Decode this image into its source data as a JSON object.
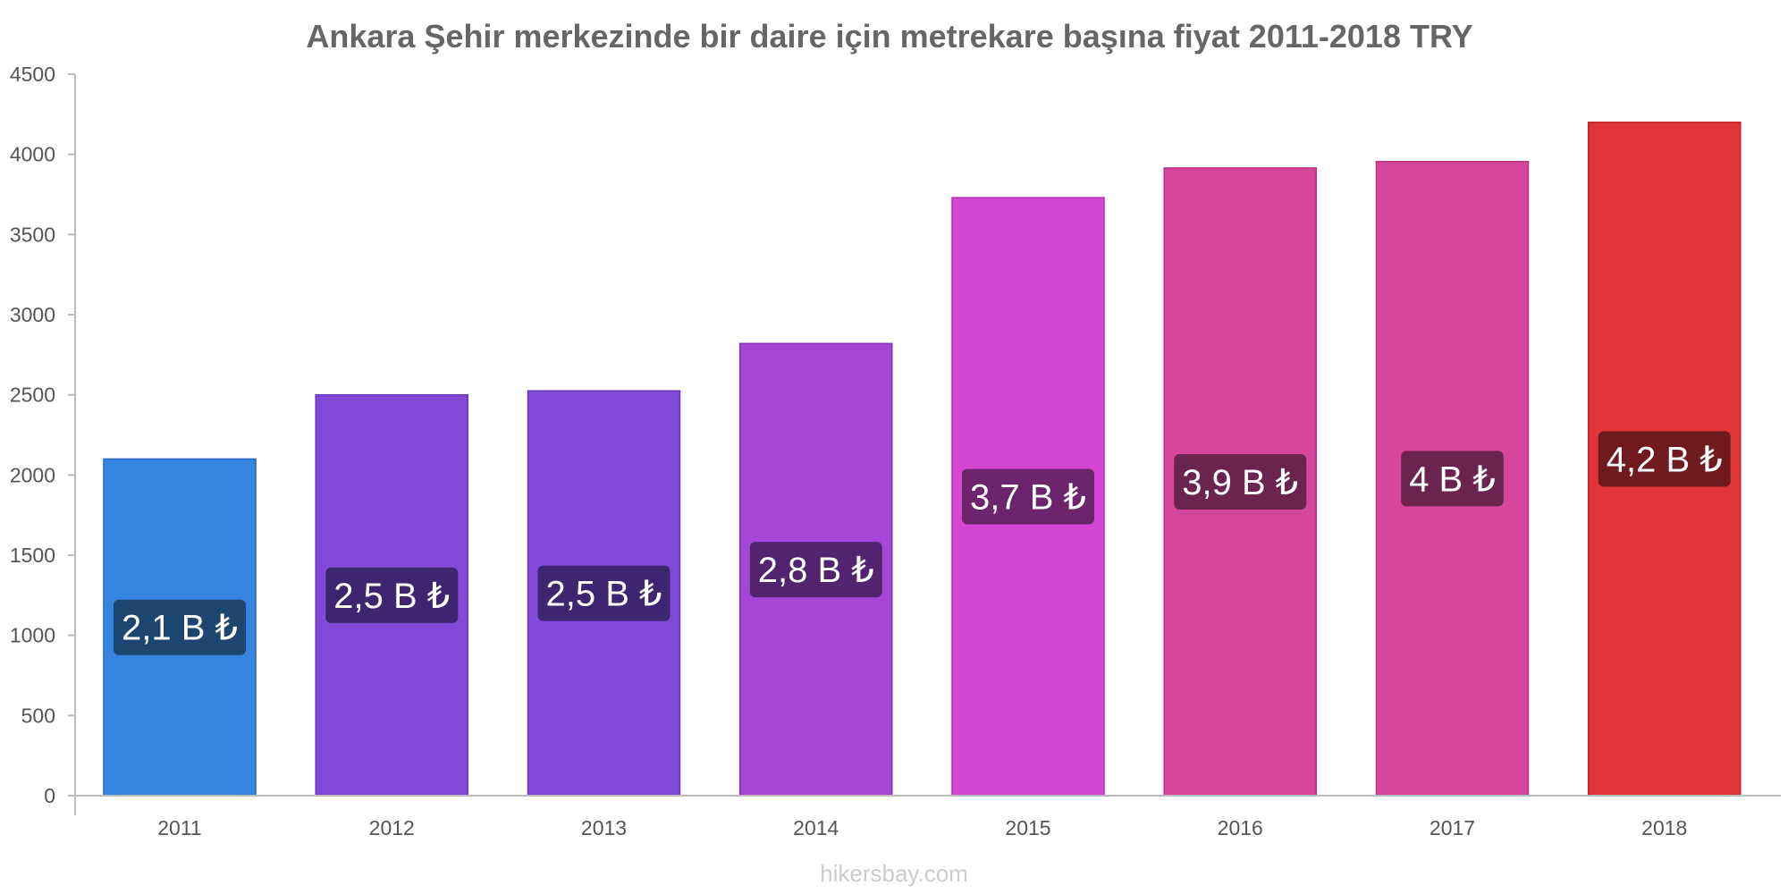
{
  "chart_data": {
    "type": "bar",
    "title": "Ankara Şehir merkezinde bir daire için metrekare başına fiyat 2011-2018 TRY",
    "xlabel": "",
    "ylabel": "",
    "categories": [
      "2011",
      "2012",
      "2013",
      "2014",
      "2015",
      "2016",
      "2017",
      "2018"
    ],
    "values": [
      2100,
      2500,
      2525,
      2820,
      3730,
      3915,
      3955,
      4200
    ],
    "data_labels": [
      "2,1 B ₺",
      "2,5 B ₺",
      "2,5 B ₺",
      "2,8 B ₺",
      "3,7 B ₺",
      "3,9 B ₺",
      "4 B ₺",
      "4,2 B ₺"
    ],
    "ylim": [
      0,
      4500
    ],
    "yticks": [
      "0",
      "500",
      "1000",
      "1500",
      "2000",
      "2500",
      "3000",
      "3500",
      "4000",
      "4500"
    ],
    "bar_colors": [
      "#3584e0",
      "#8249d8",
      "#8249d8",
      "#a546d8",
      "#d446d4",
      "#d6469d",
      "#d6469d",
      "#e03538"
    ],
    "bar_border_colors": [
      "#2468c0",
      "#6a33c0",
      "#6a33c0",
      "#8c2fc0",
      "#b82fb8",
      "#bc2f85",
      "#bc2f85",
      "#c42024"
    ],
    "label_bg_colors": [
      "#1e4470",
      "#3d2570",
      "#3d2570",
      "#52246f",
      "#6c246a",
      "#6b2450",
      "#6b2450",
      "#6f1a1c"
    ],
    "grid": false,
    "legend": "none"
  },
  "footer": {
    "watermark": "hikersbay.com"
  }
}
